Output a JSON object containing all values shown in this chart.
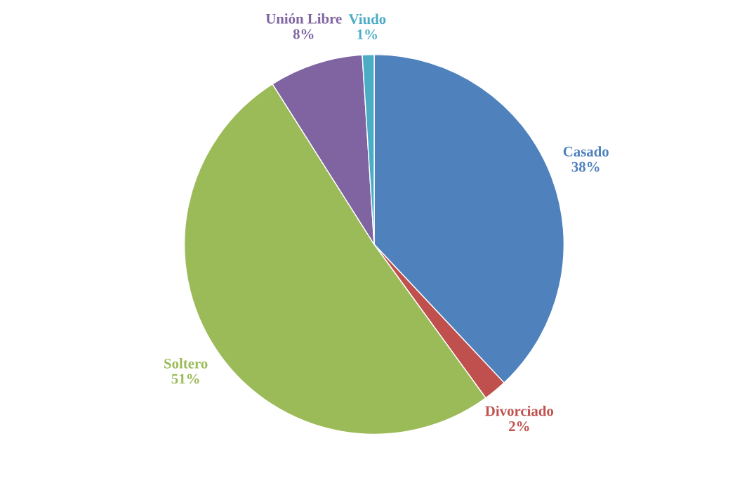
{
  "chart_data": {
    "type": "pie",
    "categories": [
      "Casado",
      "Divorciado",
      "Soltero",
      "Unión Libre",
      "Viudo"
    ],
    "values": [
      38,
      2,
      51,
      8,
      1
    ],
    "colors": [
      "#4f81bd",
      "#c0504d",
      "#9bbb59",
      "#8064a2",
      "#4bacc6"
    ],
    "value_labels": [
      "38%",
      "2%",
      "51%",
      "8%",
      "1%"
    ]
  }
}
